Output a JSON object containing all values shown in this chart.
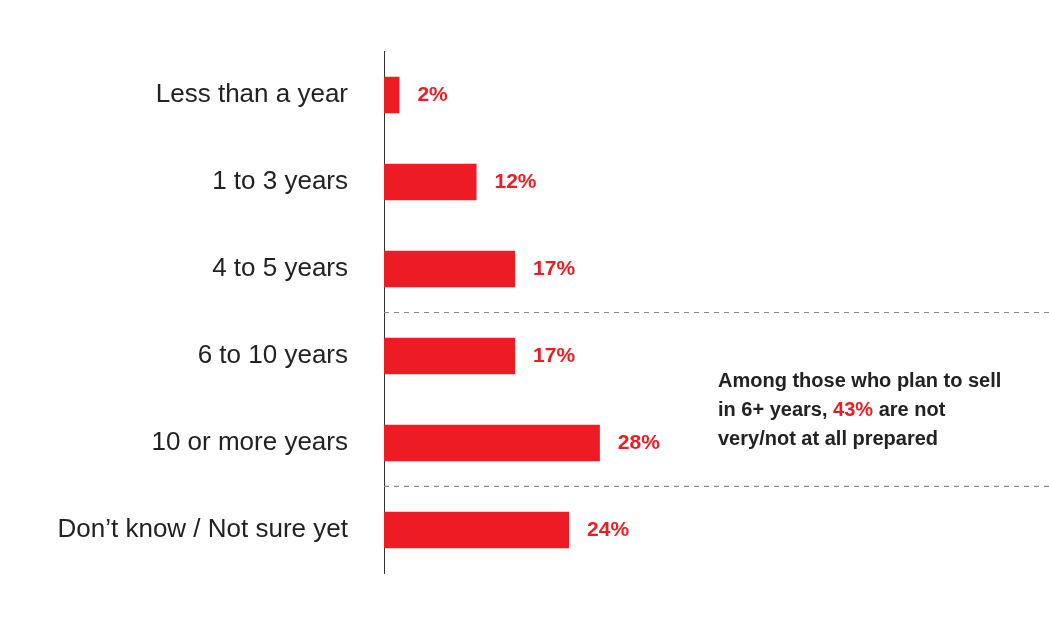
{
  "chart_data": {
    "type": "bar",
    "orientation": "horizontal",
    "categories": [
      "Less than a year",
      "1 to 3 years",
      "4 to 5 years",
      "6 to 10 years",
      "10 or more years",
      "Don’t know / Not sure yet"
    ],
    "values": [
      2,
      12,
      17,
      17,
      28,
      24
    ],
    "value_labels": [
      "2%",
      "12%",
      "17%",
      "17%",
      "28%",
      "24%"
    ],
    "color": "#ed1c24",
    "xlim": [
      0,
      86
    ],
    "tick_labels": "y",
    "legend": false,
    "annotations": [
      "Among those who plan to sell in 6+ years, 43% are not very/not at all prepared"
    ]
  }
}
